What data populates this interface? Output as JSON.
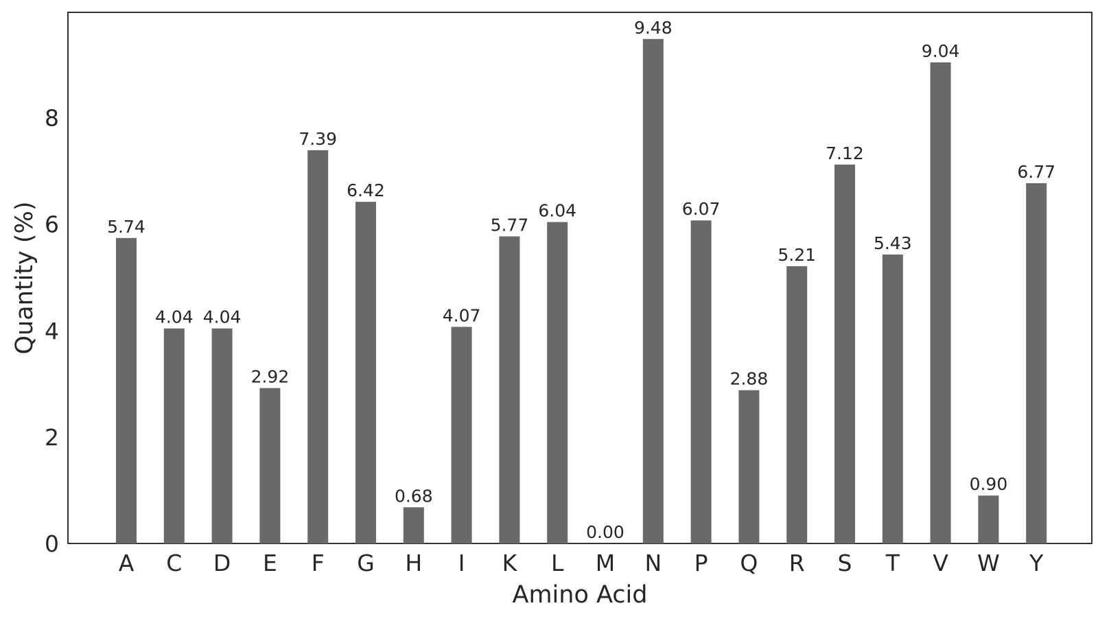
{
  "chart_data": {
    "type": "bar",
    "title": "",
    "xlabel": "Amino Acid",
    "ylabel": "Quantity (%)",
    "categories": [
      "A",
      "C",
      "D",
      "E",
      "F",
      "G",
      "H",
      "I",
      "K",
      "L",
      "M",
      "N",
      "P",
      "Q",
      "R",
      "S",
      "T",
      "V",
      "W",
      "Y"
    ],
    "values": [
      5.74,
      4.04,
      4.04,
      2.92,
      7.39,
      6.42,
      0.68,
      4.07,
      5.77,
      6.04,
      0.0,
      9.48,
      6.07,
      2.88,
      5.21,
      7.12,
      5.43,
      9.04,
      0.9,
      6.77
    ],
    "value_labels": [
      "5.74",
      "4.04",
      "4.04",
      "2.92",
      "7.39",
      "6.42",
      "0.68",
      "4.07",
      "5.77",
      "6.04",
      "0.00",
      "9.48",
      "6.07",
      "2.88",
      "5.21",
      "7.12",
      "5.43",
      "9.04",
      "0.90",
      "6.77"
    ],
    "yticks": [
      0,
      2,
      4,
      6,
      8
    ],
    "ytick_labels": [
      "0",
      "2",
      "4",
      "6",
      "8"
    ],
    "ylim": [
      0,
      9.98
    ],
    "grid": false,
    "bar_color": "#696969"
  }
}
